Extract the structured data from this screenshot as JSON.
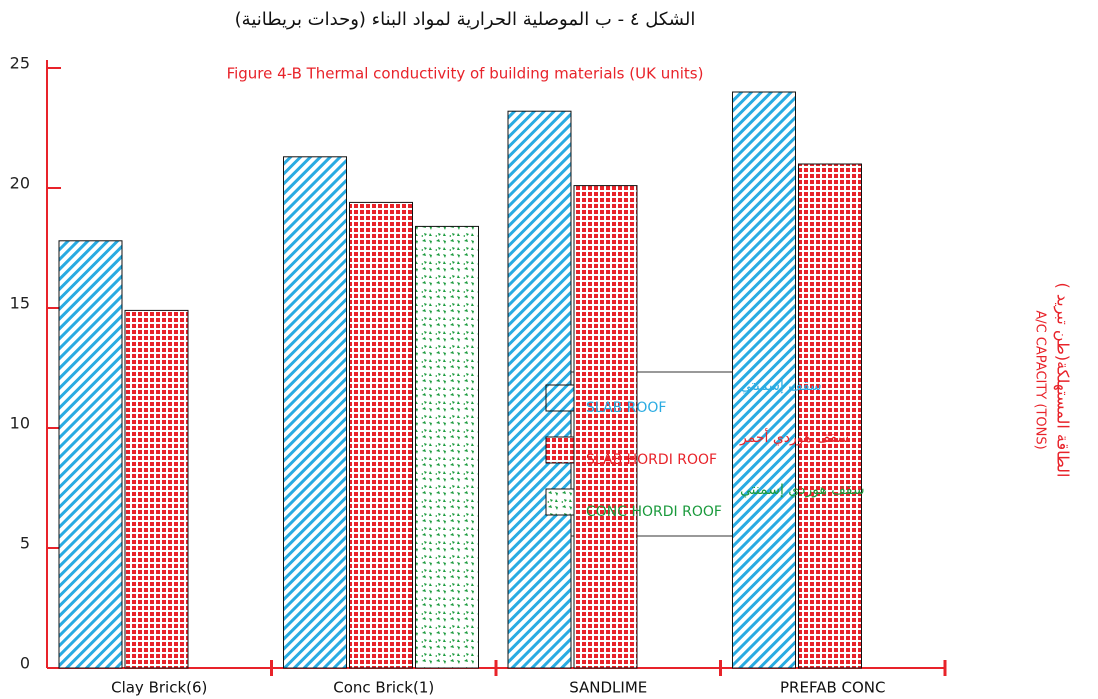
{
  "chart_data": {
    "type": "bar",
    "title_ar": "الشكل ٤ - ب الموصلية الحرارية لمواد البناء (وحدات بريطانية)",
    "title": "Figure 4-B Thermal conductivity of building materials (UK units)",
    "y_label_ar": "الطاقة المستهلكة(طن تبريد )",
    "y_label": "A/C CAPACITY (TONS)",
    "categories": [
      "Clay Brick(6)",
      "Conc Brick(1)",
      "SANDLIME",
      "PREFAB CONC"
    ],
    "series": [
      {
        "name_ar": "سقف إسمنتي",
        "name": "SLAB ROOF",
        "color": "#29abe2",
        "pattern": "diagonal",
        "values": [
          17.8,
          21.3,
          23.2,
          24.0
        ]
      },
      {
        "name_ar": "سقف هوردي أحمر",
        "name": "SLAB HORDI ROOF",
        "color": "#e8232a",
        "pattern": "grid",
        "values": [
          14.9,
          19.4,
          20.1,
          21.0
        ]
      },
      {
        "name_ar": "سقف هوردي إسمنتي",
        "name": "CONC HORDI ROOF",
        "color": "#1a9a3c",
        "pattern": "dots",
        "values": [
          null,
          18.4,
          null,
          null
        ]
      }
    ],
    "ylim": [
      0,
      25
    ],
    "yticks": [
      0,
      5,
      10,
      15,
      20,
      25
    ]
  }
}
